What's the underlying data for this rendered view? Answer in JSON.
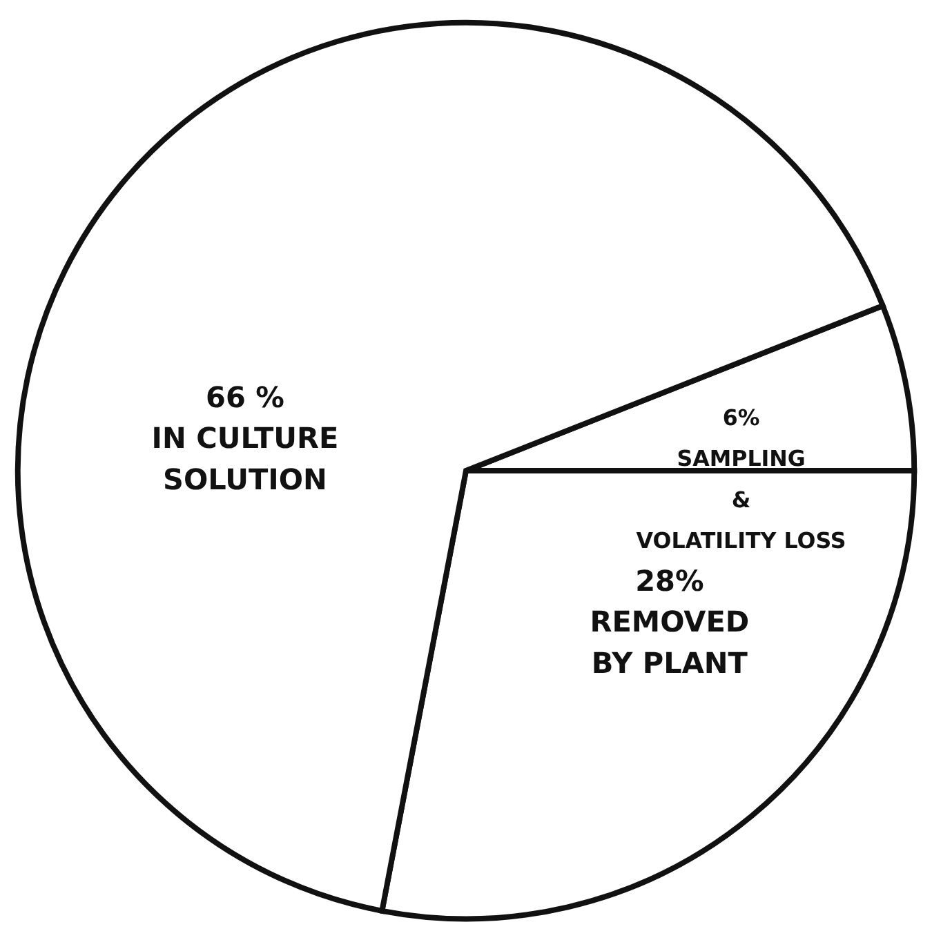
{
  "chart_data": {
    "type": "pie",
    "categories": [
      "SAMPLING\n&\nVOLATILITY LOSS",
      "REMOVED\nBY PLANT",
      "IN CULTURE\nSOLUTION"
    ],
    "values": [
      6,
      28,
      66
    ],
    "value_labels": [
      "6%",
      "28%",
      "66 %"
    ],
    "colors": [
      "#ffffff",
      "#ffffff",
      "#ffffff"
    ],
    "legend": false
  }
}
